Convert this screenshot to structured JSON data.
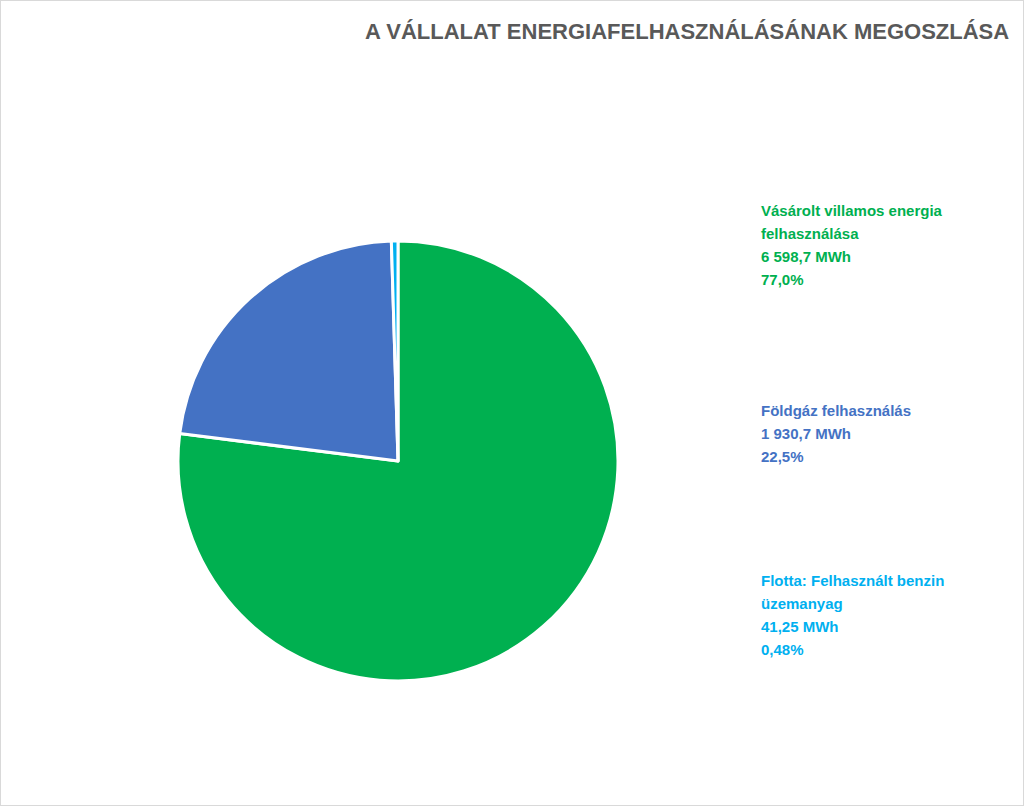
{
  "chart_data": {
    "type": "pie",
    "title": "A VÁLLALAT ENERGIAFELHASZNÁLÁSÁNAK MEGOSZLÁSA",
    "categories": [
      "Vásárolt villamos energia felhasználása",
      "Földgáz felhasználás",
      "Flotta: Felhasznált benzin üzemanyag"
    ],
    "values": [
      6598.7,
      1930.7,
      41.25
    ],
    "value_labels": [
      "6 598,7 MWh",
      "1 930,7 MWh",
      "41,25 MWh"
    ],
    "percentages": [
      77.0,
      22.5,
      0.48
    ],
    "percentage_labels": [
      "77,0%",
      "22,5%",
      "0,48%"
    ],
    "colors": [
      "#00b050",
      "#4472c4",
      "#00b0f0"
    ],
    "data_labels": true,
    "legend": false
  }
}
